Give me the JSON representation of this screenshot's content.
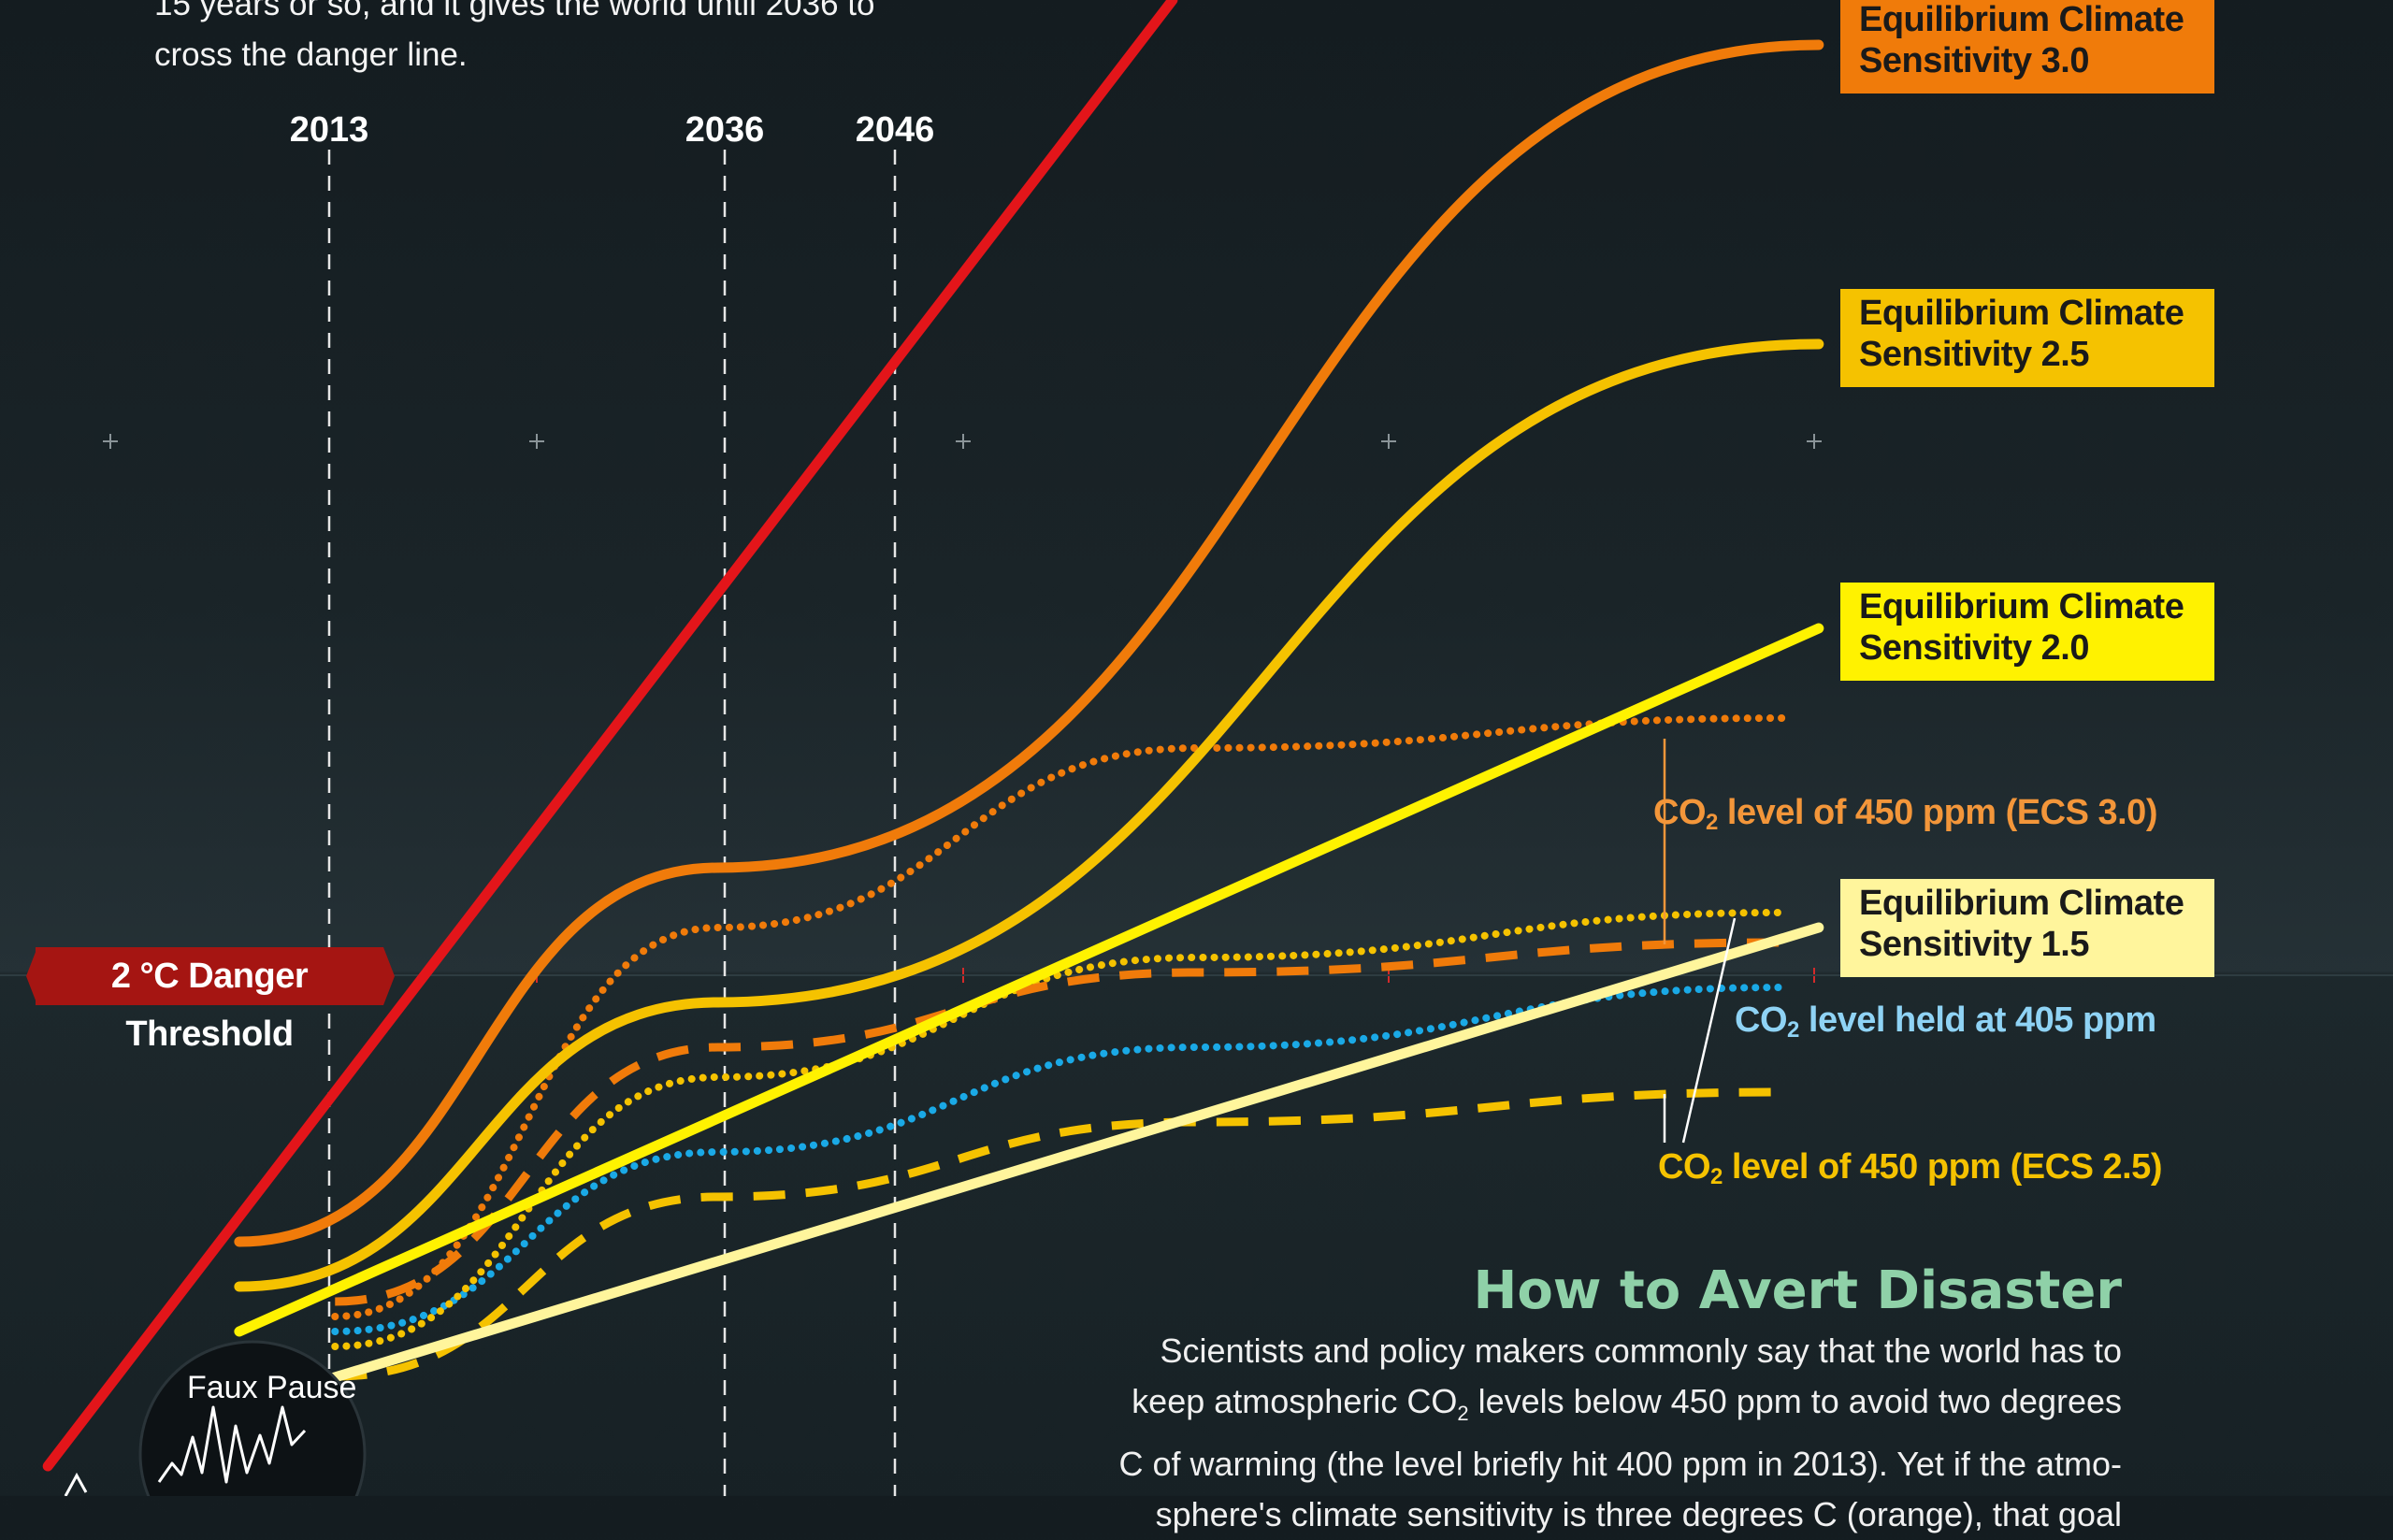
{
  "intro": {
    "line1": "15 years or so, and it gives the world until 2036 to",
    "line2": "cross the danger line."
  },
  "colors": {
    "background_top": "#141c20",
    "background_bottom": "#253136",
    "ecs_high": "#e3151a",
    "ecs_3_0": "#f07b0a",
    "ecs_2_5": "#f5c200",
    "ecs_2_0": "#fff200",
    "ecs_1_5": "#fff59c",
    "co2_405": "#1aa9e6",
    "threshold": "#a51512",
    "title_green": "#8fd1a8"
  },
  "years": [
    "2013",
    "2036",
    "2046"
  ],
  "threshold_label": "2 °C Danger Threshold",
  "labels": {
    "ecs30": {
      "line1": "Equilibrium Climate",
      "line2": "Sensitivity 3.0",
      "bg": "#f07b0a"
    },
    "ecs25": {
      "line1": "Equilibrium Climate",
      "line2": "Sensitivity 2.5",
      "bg": "#f5c200"
    },
    "ecs20": {
      "line1": "Equilibrium Climate",
      "line2": "Sensitivity 2.0",
      "bg": "#fff200"
    },
    "ecs15": {
      "line1": "Equilibrium Climate",
      "line2": "Sensitivity 1.5",
      "bg": "#fff59c"
    }
  },
  "co2_labels": {
    "ppm450_ecs30": {
      "pre": "CO",
      "sub": "2",
      "post": " level of 450 ppm (ECS 3.0)",
      "color": "#f3963a"
    },
    "ppm405": {
      "pre": "CO",
      "sub": "2",
      "post": " level held at 405 ppm",
      "color": "#8fd3f5"
    },
    "ppm450_ecs25": {
      "pre": "CO",
      "sub": "2",
      "post": " level of 450 ppm (ECS 2.5)",
      "color": "#f5c200"
    }
  },
  "section": {
    "title": "How to Avert Disaster",
    "line1": "Scientists and policy makers commonly say that the world has to",
    "line2_pre": "keep atmospheric CO",
    "line2_sub": "2",
    "line2_post": " levels below 450 ppm to avoid two degrees",
    "line3": "C of warming (the level briefly hit 400 ppm in 2013). Yet if the atmo-",
    "line4": "sphere's climate sensitivity is three degrees C (orange), that goal"
  },
  "faux_pause": "Faux Pause",
  "chart_data": {
    "type": "line",
    "title": "",
    "xlabel": "",
    "ylabel": "",
    "marked_years": [
      2013,
      2036,
      2046
    ],
    "threshold": {
      "label": "2 °C Danger Threshold",
      "value": 2
    },
    "series": [
      {
        "key": "ecs_high",
        "style": "solid",
        "color": "#e3151a",
        "points": [
          [
            0.02,
            0.98
          ],
          [
            0.49,
            0.0
          ]
        ]
      },
      {
        "key": "ecs30",
        "name": "Equilibrium Climate Sensitivity 3.0",
        "style": "solid",
        "color": "#f07b0a",
        "points": [
          [
            0.1,
            0.83
          ],
          [
            0.3,
            0.58
          ],
          [
            0.76,
            0.03
          ]
        ]
      },
      {
        "key": "ecs25",
        "name": "Equilibrium Climate Sensitivity 2.5",
        "style": "solid",
        "color": "#f5c200",
        "points": [
          [
            0.1,
            0.86
          ],
          [
            0.3,
            0.67
          ],
          [
            0.76,
            0.23
          ]
        ]
      },
      {
        "key": "ecs20",
        "name": "Equilibrium Climate Sensitivity 2.0",
        "style": "solid",
        "color": "#fff200",
        "points": [
          [
            0.1,
            0.89
          ],
          [
            0.76,
            0.42
          ]
        ]
      },
      {
        "key": "ecs15",
        "name": "Equilibrium Climate Sensitivity 1.5",
        "style": "solid",
        "color": "#fff59c",
        "points": [
          [
            0.1,
            0.94
          ],
          [
            0.76,
            0.62
          ]
        ]
      },
      {
        "key": "ppm450_ecs30_dotted",
        "name": "CO2 level of 450 ppm (ECS 3.0)",
        "style": "dotted",
        "color": "#f07b0a",
        "points": [
          [
            0.14,
            0.88
          ],
          [
            0.3,
            0.62
          ],
          [
            0.5,
            0.5
          ],
          [
            0.745,
            0.48
          ]
        ]
      },
      {
        "key": "ppm450_ecs30_dashed",
        "style": "dashed",
        "color": "#f07b0a",
        "points": [
          [
            0.14,
            0.87
          ],
          [
            0.3,
            0.7
          ],
          [
            0.5,
            0.65
          ],
          [
            0.745,
            0.63
          ]
        ]
      },
      {
        "key": "ppm450_ecs25_dotted",
        "style": "dotted",
        "color": "#f5c200",
        "points": [
          [
            0.14,
            0.9
          ],
          [
            0.3,
            0.72
          ],
          [
            0.5,
            0.64
          ],
          [
            0.745,
            0.61
          ]
        ]
      },
      {
        "key": "ppm405",
        "name": "CO2 level held at 405 ppm",
        "style": "dotted",
        "color": "#1aa9e6",
        "points": [
          [
            0.14,
            0.89
          ],
          [
            0.3,
            0.77
          ],
          [
            0.5,
            0.7
          ],
          [
            0.745,
            0.66
          ]
        ]
      },
      {
        "key": "ppm450_ecs25_dashed",
        "name": "CO2 level of 450 ppm (ECS 2.5)",
        "style": "dashed",
        "color": "#f5c200",
        "points": [
          [
            0.14,
            0.92
          ],
          [
            0.3,
            0.8
          ],
          [
            0.5,
            0.75
          ],
          [
            0.745,
            0.73
          ]
        ]
      }
    ]
  }
}
